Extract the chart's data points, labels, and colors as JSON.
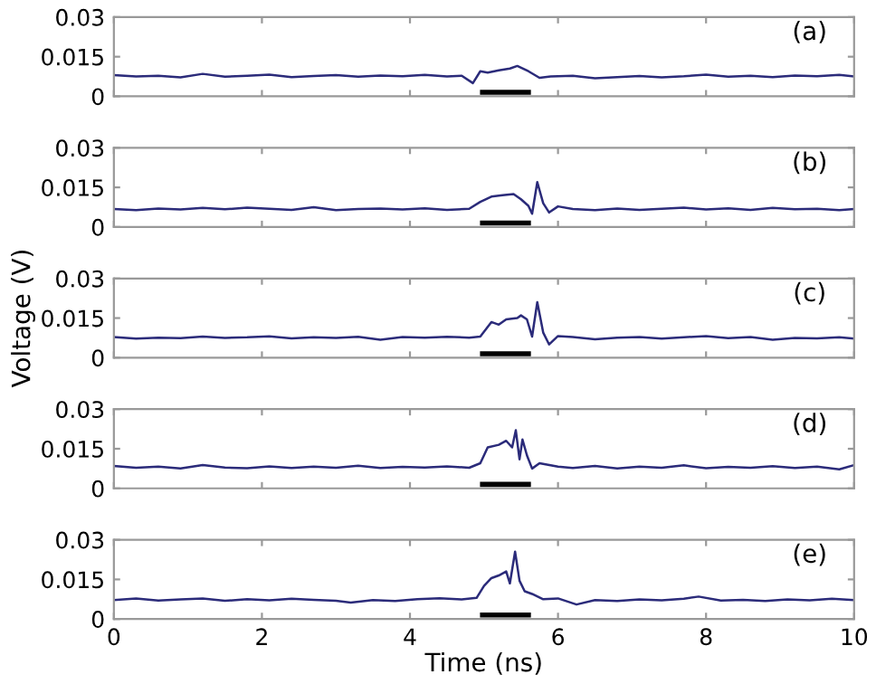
{
  "chart_data": [
    {
      "type": "line",
      "annotations": [
        "(a)"
      ],
      "xlim": [
        0,
        10
      ],
      "ylim": [
        0,
        0.03
      ],
      "yticks": [
        0,
        0.015,
        0.03
      ],
      "xticks": [
        0,
        2,
        4,
        6,
        8,
        10
      ],
      "tick_labels": "y",
      "grid": false,
      "series": [
        {
          "color": "#2b2b7a",
          "x": [
            0,
            0.3,
            0.6,
            0.9,
            1.2,
            1.5,
            1.8,
            2.1,
            2.4,
            2.7,
            3.0,
            3.3,
            3.6,
            3.9,
            4.2,
            4.5,
            4.7,
            4.85,
            4.95,
            5.05,
            5.2,
            5.35,
            5.45,
            5.6,
            5.75,
            5.9,
            6.2,
            6.5,
            6.8,
            7.1,
            7.4,
            7.7,
            8.0,
            8.3,
            8.6,
            8.9,
            9.2,
            9.5,
            9.8,
            10
          ],
          "values": [
            0.008,
            0.0075,
            0.0078,
            0.0072,
            0.0085,
            0.0074,
            0.0078,
            0.0082,
            0.0073,
            0.0077,
            0.008,
            0.0074,
            0.0079,
            0.0076,
            0.0081,
            0.0075,
            0.0078,
            0.005,
            0.0095,
            0.009,
            0.0098,
            0.0105,
            0.0115,
            0.0095,
            0.007,
            0.0075,
            0.0078,
            0.0068,
            0.0073,
            0.0077,
            0.0072,
            0.0076,
            0.0082,
            0.0074,
            0.0078,
            0.0073,
            0.0079,
            0.0076,
            0.0081,
            0.0075
          ]
        },
        {
          "color": "#000000",
          "x": [
            4.98,
            5.6
          ],
          "values": [
            0.0015,
            0.0015
          ]
        }
      ]
    },
    {
      "type": "line",
      "annotations": [
        "(b)"
      ],
      "xlim": [
        0,
        10
      ],
      "ylim": [
        0,
        0.03
      ],
      "yticks": [
        0,
        0.015,
        0.03
      ],
      "xticks": [
        0,
        2,
        4,
        6,
        8,
        10
      ],
      "tick_labels": "y",
      "grid": false,
      "series": [
        {
          "color": "#2b2b7a",
          "x": [
            0,
            0.3,
            0.6,
            0.9,
            1.2,
            1.5,
            1.8,
            2.1,
            2.4,
            2.7,
            3.0,
            3.3,
            3.6,
            3.9,
            4.2,
            4.5,
            4.8,
            4.95,
            5.1,
            5.25,
            5.4,
            5.5,
            5.6,
            5.65,
            5.72,
            5.8,
            5.88,
            6.0,
            6.2,
            6.5,
            6.8,
            7.1,
            7.4,
            7.7,
            8.0,
            8.3,
            8.6,
            8.9,
            9.2,
            9.5,
            9.8,
            10
          ],
          "values": [
            0.0068,
            0.0064,
            0.007,
            0.0066,
            0.0072,
            0.0067,
            0.0073,
            0.0069,
            0.0065,
            0.0075,
            0.0064,
            0.0068,
            0.007,
            0.0066,
            0.0071,
            0.0065,
            0.0069,
            0.0095,
            0.0115,
            0.012,
            0.0125,
            0.0105,
            0.008,
            0.005,
            0.017,
            0.009,
            0.0055,
            0.0078,
            0.0068,
            0.0064,
            0.007,
            0.0065,
            0.0069,
            0.0073,
            0.0066,
            0.0071,
            0.0065,
            0.0072,
            0.0067,
            0.0069,
            0.0064,
            0.0068
          ]
        },
        {
          "color": "#000000",
          "x": [
            4.98,
            5.6
          ],
          "values": [
            0.0015,
            0.0015
          ]
        }
      ]
    },
    {
      "type": "line",
      "annotations": [
        "(c)"
      ],
      "ylabel": "Voltage (V)",
      "xlim": [
        0,
        10
      ],
      "ylim": [
        0,
        0.03
      ],
      "yticks": [
        0,
        0.015,
        0.03
      ],
      "xticks": [
        0,
        2,
        4,
        6,
        8,
        10
      ],
      "tick_labels": "y",
      "grid": false,
      "series": [
        {
          "color": "#2b2b7a",
          "x": [
            0,
            0.3,
            0.6,
            0.9,
            1.2,
            1.5,
            1.8,
            2.1,
            2.4,
            2.7,
            3.0,
            3.3,
            3.6,
            3.9,
            4.2,
            4.5,
            4.8,
            4.95,
            5.1,
            5.2,
            5.3,
            5.45,
            5.5,
            5.58,
            5.65,
            5.72,
            5.8,
            5.88,
            6.0,
            6.2,
            6.5,
            6.8,
            7.1,
            7.4,
            7.7,
            8.0,
            8.3,
            8.6,
            8.9,
            9.2,
            9.5,
            9.8,
            10
          ],
          "values": [
            0.0078,
            0.0072,
            0.0076,
            0.0074,
            0.008,
            0.0075,
            0.0077,
            0.0081,
            0.0073,
            0.0077,
            0.0075,
            0.0079,
            0.0068,
            0.0078,
            0.0076,
            0.0079,
            0.0076,
            0.008,
            0.0135,
            0.0125,
            0.0145,
            0.015,
            0.016,
            0.0145,
            0.008,
            0.021,
            0.0095,
            0.005,
            0.0082,
            0.0078,
            0.007,
            0.0076,
            0.0078,
            0.0072,
            0.0077,
            0.0082,
            0.0074,
            0.0078,
            0.0068,
            0.0075,
            0.0073,
            0.0077,
            0.0072
          ]
        },
        {
          "color": "#000000",
          "x": [
            4.98,
            5.6
          ],
          "values": [
            0.0015,
            0.0015
          ]
        }
      ]
    },
    {
      "type": "line",
      "annotations": [
        "(d)"
      ],
      "xlim": [
        0,
        10
      ],
      "ylim": [
        0,
        0.03
      ],
      "yticks": [
        0,
        0.015,
        0.03
      ],
      "xticks": [
        0,
        2,
        4,
        6,
        8,
        10
      ],
      "tick_labels": "y",
      "grid": false,
      "series": [
        {
          "color": "#2b2b7a",
          "x": [
            0,
            0.3,
            0.6,
            0.9,
            1.2,
            1.5,
            1.8,
            2.1,
            2.4,
            2.7,
            3.0,
            3.3,
            3.6,
            3.9,
            4.2,
            4.5,
            4.8,
            4.95,
            5.05,
            5.2,
            5.3,
            5.38,
            5.43,
            5.48,
            5.52,
            5.58,
            5.65,
            5.75,
            6.0,
            6.2,
            6.5,
            6.8,
            7.1,
            7.4,
            7.7,
            8.0,
            8.3,
            8.6,
            8.9,
            9.2,
            9.5,
            9.8,
            10
          ],
          "values": [
            0.0085,
            0.0078,
            0.0082,
            0.0075,
            0.0088,
            0.0079,
            0.0076,
            0.0083,
            0.0077,
            0.0082,
            0.0078,
            0.0086,
            0.0077,
            0.0081,
            0.0079,
            0.0083,
            0.0078,
            0.0095,
            0.0155,
            0.0165,
            0.018,
            0.0155,
            0.022,
            0.011,
            0.0185,
            0.0125,
            0.0075,
            0.0095,
            0.0082,
            0.0077,
            0.0085,
            0.0075,
            0.0082,
            0.0078,
            0.0087,
            0.0076,
            0.0081,
            0.0078,
            0.0084,
            0.0077,
            0.0082,
            0.0072,
            0.0088
          ]
        },
        {
          "color": "#000000",
          "x": [
            4.98,
            5.6
          ],
          "values": [
            0.0015,
            0.0015
          ]
        }
      ]
    },
    {
      "type": "line",
      "annotations": [
        "(e)"
      ],
      "xlabel": "Time (ns)",
      "xlim": [
        0,
        10
      ],
      "ylim": [
        0,
        0.03
      ],
      "yticks": [
        0,
        0.015,
        0.03
      ],
      "xticks": [
        0,
        2,
        4,
        6,
        8,
        10
      ],
      "grid": false,
      "series": [
        {
          "color": "#2b2b7a",
          "x": [
            0,
            0.3,
            0.6,
            0.9,
            1.2,
            1.5,
            1.8,
            2.1,
            2.4,
            2.7,
            3.0,
            3.2,
            3.5,
            3.8,
            4.1,
            4.4,
            4.7,
            4.9,
            5.0,
            5.1,
            5.2,
            5.3,
            5.35,
            5.42,
            5.48,
            5.55,
            5.65,
            5.8,
            6.0,
            6.25,
            6.5,
            6.8,
            7.1,
            7.4,
            7.7,
            7.9,
            8.2,
            8.5,
            8.8,
            9.1,
            9.4,
            9.7,
            10
          ],
          "values": [
            0.0072,
            0.0078,
            0.007,
            0.0074,
            0.0078,
            0.0069,
            0.0075,
            0.0071,
            0.0077,
            0.0073,
            0.0069,
            0.0062,
            0.0072,
            0.0068,
            0.0075,
            0.0079,
            0.0074,
            0.008,
            0.0125,
            0.0155,
            0.0165,
            0.018,
            0.0135,
            0.0255,
            0.0145,
            0.0105,
            0.0095,
            0.0075,
            0.0078,
            0.0055,
            0.0072,
            0.0068,
            0.0074,
            0.0071,
            0.0077,
            0.0085,
            0.007,
            0.0073,
            0.0068,
            0.0074,
            0.0071,
            0.0077,
            0.0072
          ]
        },
        {
          "color": "#000000",
          "x": [
            4.98,
            5.6
          ],
          "values": [
            0.0015,
            0.0015
          ]
        }
      ]
    }
  ]
}
